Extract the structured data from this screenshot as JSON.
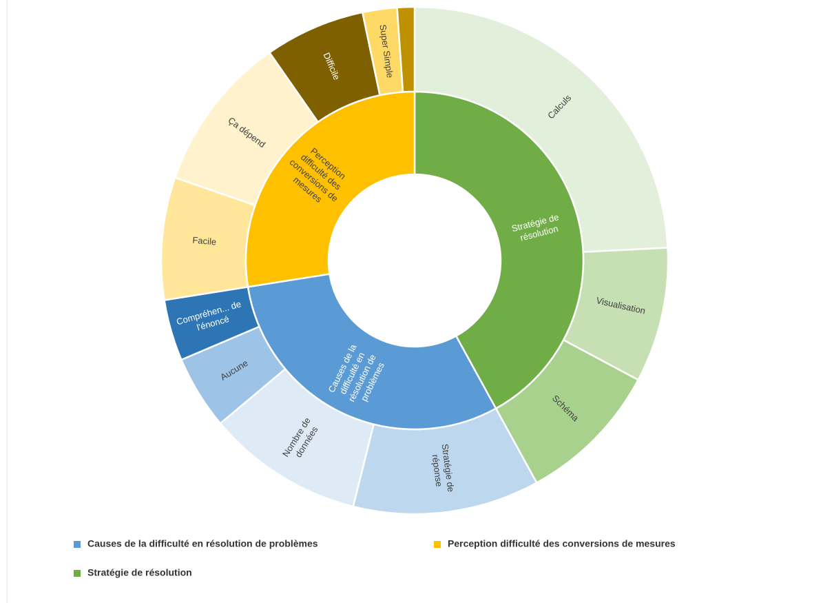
{
  "chart_data": {
    "type": "sunburst",
    "series": [
      {
        "name": "Stratégie de résolution",
        "color": "#70ad47",
        "categories": [
          "Calculs",
          "Visualisation",
          "Schéma"
        ],
        "values": [
          24.2,
          8.6,
          9.2
        ],
        "colors": [
          "#e2efda",
          "#c6e0b4",
          "#a9d18e"
        ]
      },
      {
        "name": "Causes de la difficulté en résolution de problèmes",
        "color": "#5b9bd5",
        "categories": [
          "Stratégie de réponse",
          "Nombre de données",
          "Aucune",
          "Compréhen... de l'énoncé"
        ],
        "values": [
          11.9,
          10,
          4.7,
          3.9
        ],
        "colors": [
          "#bdd7ee",
          "#deebf7",
          "#9dc3e6",
          "#2e75b6"
        ]
      },
      {
        "name": "Perception difficulté des conversions de mesures",
        "color": "#ffc000",
        "categories": [
          "Facile",
          "Ça dépend",
          "Difficile",
          "Super Simple",
          null
        ],
        "values": [
          7.8,
          10,
          6.4,
          2.2,
          1.1
        ],
        "colors": [
          "#ffe699",
          "#fff2cc",
          "#7f6000",
          "#ffd966",
          "#bf9000"
        ]
      }
    ]
  }
}
